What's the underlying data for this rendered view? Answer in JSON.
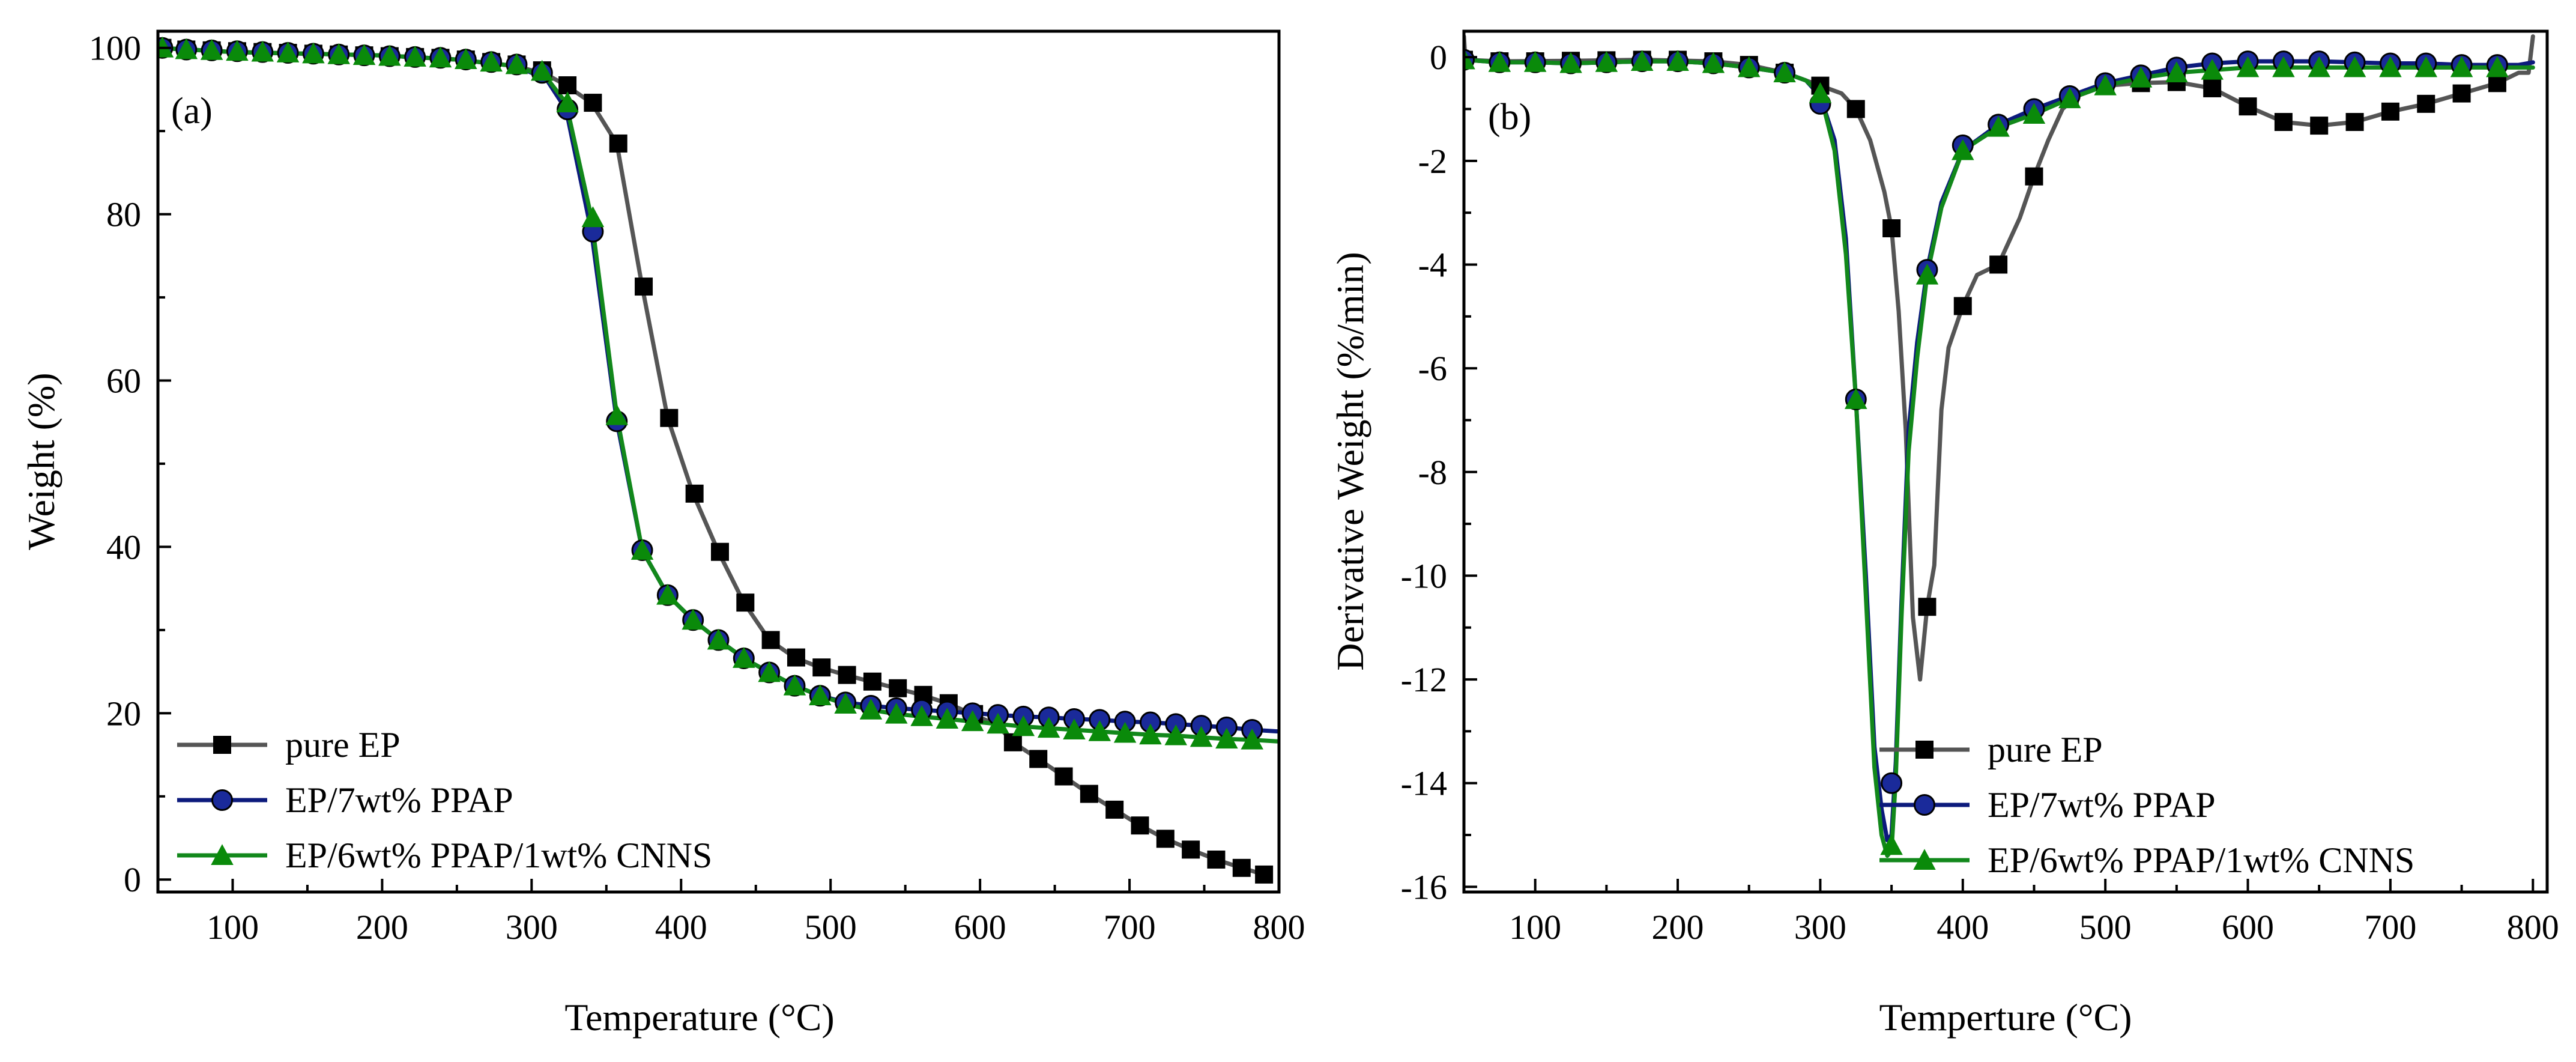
{
  "colors": {
    "pure_EP": "#000000",
    "pure_EP_line": "#555555",
    "PPAP": "#1a2a9a",
    "PPAP_line": "#0c1a7c",
    "CNNS": "#0a8a0a",
    "CNNS_line": "#12881b"
  },
  "chart_data": [
    {
      "type": "line",
      "panel_label": "(a)",
      "xlabel": "Temperature (°C)",
      "ylabel": "Weight (%)",
      "xlim": [
        50,
        800
      ],
      "ylim": [
        -1.5,
        102
      ],
      "xticks": [
        100,
        200,
        300,
        400,
        500,
        600,
        700,
        800
      ],
      "yticks": [
        0,
        20,
        40,
        60,
        80,
        100
      ],
      "legend_position": "bottom-left",
      "series": [
        {
          "name": "pure EP",
          "marker": "square",
          "color_key": "pure_EP",
          "x": [
            50,
            100,
            200,
            250,
            290,
            310,
            323,
            340,
            357,
            374,
            391,
            408,
            425,
            442,
            459,
            476,
            493,
            510,
            527,
            544,
            561,
            578,
            595,
            612,
            622,
            639,
            656,
            673,
            690,
            707,
            724,
            741,
            758,
            775,
            790
          ],
          "y": [
            100,
            99.5,
            99.1,
            98.6,
            97.8,
            96.8,
            95.5,
            93.4,
            88.5,
            71.3,
            55.5,
            46.4,
            39.4,
            33.3,
            28.8,
            26.7,
            25.5,
            24.6,
            23.8,
            23.0,
            22.2,
            21.2,
            19.9,
            18.5,
            16.5,
            14.5,
            12.4,
            10.3,
            8.4,
            6.5,
            4.9,
            3.6,
            2.4,
            1.4,
            0.6
          ],
          "marker_x": [
            53,
            69,
            86,
            103,
            120,
            137,
            154,
            171,
            188,
            205,
            222,
            239,
            256,
            273,
            290,
            307,
            324,
            341,
            358,
            375,
            392,
            409,
            426,
            443,
            460,
            477,
            494,
            511,
            528,
            545,
            562,
            579,
            596,
            622,
            639,
            656,
            673,
            690,
            707,
            724,
            741,
            758,
            775,
            790
          ],
          "marker_y": [
            100,
            99.8,
            99.7,
            99.6,
            99.5,
            99.4,
            99.3,
            99.2,
            99.1,
            99.0,
            98.9,
            98.8,
            98.6,
            98.3,
            98.0,
            97.3,
            95.5,
            93.4,
            88.5,
            71.3,
            55.5,
            46.4,
            39.4,
            33.3,
            28.8,
            26.7,
            25.5,
            24.6,
            23.8,
            23.0,
            22.2,
            21.2,
            19.9,
            16.5,
            14.5,
            12.4,
            10.3,
            8.4,
            6.5,
            4.9,
            3.6,
            2.4,
            1.4,
            0.6
          ]
        },
        {
          "name": "EP/7wt% PPAP",
          "marker": "circle",
          "color_key": "PPAP",
          "x": [
            50,
            100,
            200,
            250,
            290,
            310,
            323,
            340,
            357,
            374,
            391,
            408,
            425,
            442,
            459,
            476,
            493,
            510,
            527,
            544,
            561,
            578,
            595,
            612,
            629,
            646,
            663,
            680,
            697,
            714,
            731,
            748,
            765,
            782,
            800
          ],
          "y": [
            100,
            99.5,
            99.1,
            98.6,
            97.8,
            96.2,
            92.6,
            77.9,
            55.1,
            39.6,
            34.2,
            31.2,
            28.8,
            26.6,
            24.9,
            23.3,
            22.1,
            21.3,
            20.9,
            20.6,
            20.4,
            20.2,
            20.0,
            19.8,
            19.6,
            19.5,
            19.3,
            19.2,
            19.0,
            18.9,
            18.7,
            18.5,
            18.3,
            18.0,
            17.8
          ],
          "marker_x": [
            53,
            69,
            86,
            103,
            120,
            137,
            154,
            171,
            188,
            205,
            222,
            239,
            256,
            273,
            290,
            307,
            324,
            341,
            357,
            374,
            391,
            408,
            425,
            442,
            459,
            476,
            493,
            510,
            527,
            544,
            561,
            578,
            595,
            612,
            629,
            646,
            663,
            680,
            697,
            714,
            731,
            748,
            765,
            782
          ],
          "marker_y": [
            100,
            99.8,
            99.7,
            99.6,
            99.5,
            99.4,
            99.3,
            99.2,
            99.1,
            99.0,
            98.9,
            98.8,
            98.6,
            98.3,
            98.0,
            97.0,
            92.6,
            77.9,
            55.1,
            39.6,
            34.2,
            31.2,
            28.8,
            26.6,
            24.9,
            23.3,
            22.1,
            21.3,
            20.9,
            20.6,
            20.4,
            20.2,
            20.0,
            19.8,
            19.6,
            19.5,
            19.3,
            19.2,
            19.0,
            18.9,
            18.7,
            18.5,
            18.3,
            18.0
          ]
        },
        {
          "name": "EP/6wt% PPAP/1wt% CNNS",
          "marker": "triangle",
          "color_key": "CNNS",
          "x": [
            50,
            100,
            200,
            250,
            290,
            310,
            323,
            340,
            357,
            374,
            391,
            408,
            425,
            442,
            459,
            476,
            493,
            510,
            527,
            544,
            561,
            578,
            595,
            612,
            629,
            646,
            663,
            680,
            697,
            714,
            731,
            748,
            765,
            782,
            800
          ],
          "y": [
            100,
            99.5,
            99.1,
            98.6,
            97.8,
            96.4,
            93.4,
            79.6,
            55.8,
            39.6,
            34.2,
            31.2,
            28.8,
            26.6,
            24.9,
            23.3,
            22.1,
            21.1,
            20.4,
            19.9,
            19.6,
            19.3,
            19.0,
            18.7,
            18.4,
            18.2,
            18.0,
            17.8,
            17.6,
            17.4,
            17.3,
            17.1,
            16.9,
            16.8,
            16.6
          ],
          "marker_x": [
            53,
            69,
            86,
            103,
            120,
            137,
            154,
            171,
            188,
            205,
            222,
            239,
            256,
            273,
            290,
            307,
            324,
            341,
            357,
            374,
            391,
            408,
            425,
            442,
            459,
            476,
            493,
            510,
            527,
            544,
            561,
            578,
            595,
            612,
            629,
            646,
            663,
            680,
            697,
            714,
            731,
            748,
            765,
            782
          ],
          "marker_y": [
            100,
            99.8,
            99.7,
            99.6,
            99.5,
            99.4,
            99.3,
            99.2,
            99.1,
            99.0,
            98.9,
            98.8,
            98.6,
            98.3,
            98.0,
            97.2,
            93.4,
            79.6,
            55.8,
            39.6,
            34.2,
            31.2,
            28.8,
            26.6,
            24.9,
            23.3,
            22.1,
            21.1,
            20.4,
            19.9,
            19.6,
            19.3,
            19.0,
            18.7,
            18.4,
            18.2,
            18.0,
            17.8,
            17.6,
            17.4,
            17.3,
            17.1,
            16.9,
            16.8
          ]
        }
      ]
    },
    {
      "type": "line",
      "panel_label": "(b)",
      "xlabel": "Temperture (°C)",
      "ylabel": "Derivative Weight (%/min)",
      "xlim": [
        50,
        810
      ],
      "ylim": [
        -16.1,
        0.5
      ],
      "xticks": [
        100,
        200,
        300,
        400,
        500,
        600,
        700,
        800
      ],
      "yticks": [
        0,
        -2,
        -4,
        -6,
        -8,
        -10,
        -12,
        -14,
        -16
      ],
      "legend_position": "bottom-right",
      "series": [
        {
          "name": "pure EP",
          "marker": "square",
          "color_key": "pure_EP",
          "x": [
            50,
            51,
            75,
            125,
            175,
            225,
            250,
            275,
            290,
            300,
            315,
            325,
            335,
            345,
            350,
            355,
            360,
            365,
            370,
            375,
            380,
            385,
            390,
            400,
            410,
            425,
            440,
            450,
            460,
            470,
            480,
            500,
            525,
            550,
            575,
            600,
            625,
            650,
            675,
            700,
            725,
            750,
            775,
            790,
            797,
            800
          ],
          "y": [
            0.4,
            -0.05,
            -0.08,
            -0.07,
            -0.05,
            -0.08,
            -0.15,
            -0.3,
            -0.45,
            -0.55,
            -0.7,
            -1.0,
            -1.6,
            -2.6,
            -3.3,
            -4.9,
            -7.2,
            -10.8,
            -12.0,
            -10.6,
            -9.8,
            -6.8,
            -5.6,
            -4.8,
            -4.2,
            -4.0,
            -3.1,
            -2.3,
            -1.6,
            -1.0,
            -0.75,
            -0.55,
            -0.5,
            -0.48,
            -0.6,
            -0.95,
            -1.25,
            -1.32,
            -1.25,
            -1.05,
            -0.9,
            -0.7,
            -0.5,
            -0.3,
            -0.3,
            0.4
          ],
          "marker_x": [
            50,
            75,
            100,
            125,
            150,
            175,
            200,
            225,
            250,
            275,
            300,
            325,
            350,
            375,
            400,
            425,
            450,
            475,
            500,
            525,
            550,
            575,
            600,
            625,
            650,
            675,
            700,
            725,
            750,
            775
          ],
          "marker_y": [
            -0.05,
            -0.08,
            -0.08,
            -0.07,
            -0.06,
            -0.05,
            -0.05,
            -0.08,
            -0.15,
            -0.3,
            -0.55,
            -1.0,
            -3.3,
            -10.6,
            -4.8,
            -4.0,
            -2.3,
            -0.8,
            -0.55,
            -0.5,
            -0.48,
            -0.6,
            -0.95,
            -1.25,
            -1.32,
            -1.25,
            -1.05,
            -0.9,
            -0.7,
            -0.5
          ]
        },
        {
          "name": "EP/7wt% PPAP",
          "marker": "circle",
          "color_key": "PPAP",
          "x": [
            50,
            75,
            100,
            125,
            150,
            175,
            200,
            225,
            250,
            275,
            290,
            300,
            310,
            318,
            325,
            332,
            338,
            343,
            347,
            350,
            353,
            357,
            362,
            368,
            375,
            385,
            400,
            425,
            450,
            475,
            500,
            525,
            550,
            575,
            600,
            625,
            650,
            675,
            700,
            725,
            750,
            775,
            790,
            800
          ],
          "y": [
            -0.05,
            -0.1,
            -0.1,
            -0.12,
            -0.1,
            -0.08,
            -0.08,
            -0.12,
            -0.2,
            -0.3,
            -0.45,
            -0.75,
            -1.6,
            -3.5,
            -6.6,
            -10.0,
            -13.3,
            -14.5,
            -15.1,
            -15.0,
            -13.6,
            -10.5,
            -7.2,
            -5.5,
            -4.1,
            -2.8,
            -1.8,
            -1.3,
            -1.0,
            -0.75,
            -0.5,
            -0.35,
            -0.2,
            -0.12,
            -0.08,
            -0.08,
            -0.08,
            -0.1,
            -0.12,
            -0.12,
            -0.15,
            -0.15,
            -0.15,
            -0.1
          ],
          "marker_x": [
            50,
            75,
            100,
            125,
            150,
            175,
            200,
            225,
            250,
            275,
            300,
            325,
            350,
            375,
            400,
            425,
            450,
            475,
            500,
            525,
            550,
            575,
            600,
            625,
            650,
            675,
            700,
            725,
            750,
            775
          ],
          "marker_y": [
            -0.05,
            -0.1,
            -0.1,
            -0.12,
            -0.1,
            -0.08,
            -0.08,
            -0.12,
            -0.2,
            -0.3,
            -0.9,
            -6.6,
            -14.0,
            -4.1,
            -1.7,
            -1.3,
            -1.0,
            -0.75,
            -0.5,
            -0.35,
            -0.2,
            -0.12,
            -0.08,
            -0.08,
            -0.08,
            -0.1,
            -0.12,
            -0.12,
            -0.15,
            -0.15
          ]
        },
        {
          "name": "EP/6wt% PPAP/1wt% CNNS",
          "marker": "triangle",
          "color_key": "CNNS",
          "x": [
            50,
            75,
            100,
            125,
            150,
            175,
            200,
            225,
            250,
            275,
            290,
            300,
            310,
            318,
            325,
            332,
            338,
            343,
            347,
            350,
            353,
            357,
            362,
            368,
            375,
            385,
            400,
            425,
            450,
            475,
            500,
            525,
            550,
            575,
            600,
            625,
            650,
            675,
            700,
            725,
            750,
            775,
            790,
            800
          ],
          "y": [
            -0.05,
            -0.1,
            -0.1,
            -0.12,
            -0.1,
            -0.08,
            -0.08,
            -0.12,
            -0.2,
            -0.3,
            -0.45,
            -0.7,
            -1.8,
            -3.8,
            -6.6,
            -10.4,
            -13.7,
            -15.0,
            -15.4,
            -15.3,
            -13.9,
            -10.8,
            -7.6,
            -5.8,
            -4.2,
            -2.9,
            -1.8,
            -1.35,
            -1.1,
            -0.8,
            -0.55,
            -0.4,
            -0.3,
            -0.25,
            -0.2,
            -0.2,
            -0.2,
            -0.2,
            -0.2,
            -0.2,
            -0.2,
            -0.2,
            -0.2,
            -0.2
          ],
          "marker_x": [
            50,
            75,
            100,
            125,
            150,
            175,
            200,
            225,
            250,
            275,
            300,
            325,
            350,
            375,
            400,
            425,
            450,
            475,
            500,
            525,
            550,
            575,
            600,
            625,
            650,
            675,
            700,
            725,
            750,
            775
          ],
          "marker_y": [
            -0.05,
            -0.1,
            -0.1,
            -0.12,
            -0.1,
            -0.08,
            -0.08,
            -0.12,
            -0.2,
            -0.3,
            -0.7,
            -6.6,
            -15.2,
            -4.2,
            -1.8,
            -1.35,
            -1.1,
            -0.8,
            -0.55,
            -0.4,
            -0.3,
            -0.25,
            -0.2,
            -0.2,
            -0.2,
            -0.2,
            -0.2,
            -0.2,
            -0.2,
            -0.2
          ]
        }
      ]
    }
  ]
}
